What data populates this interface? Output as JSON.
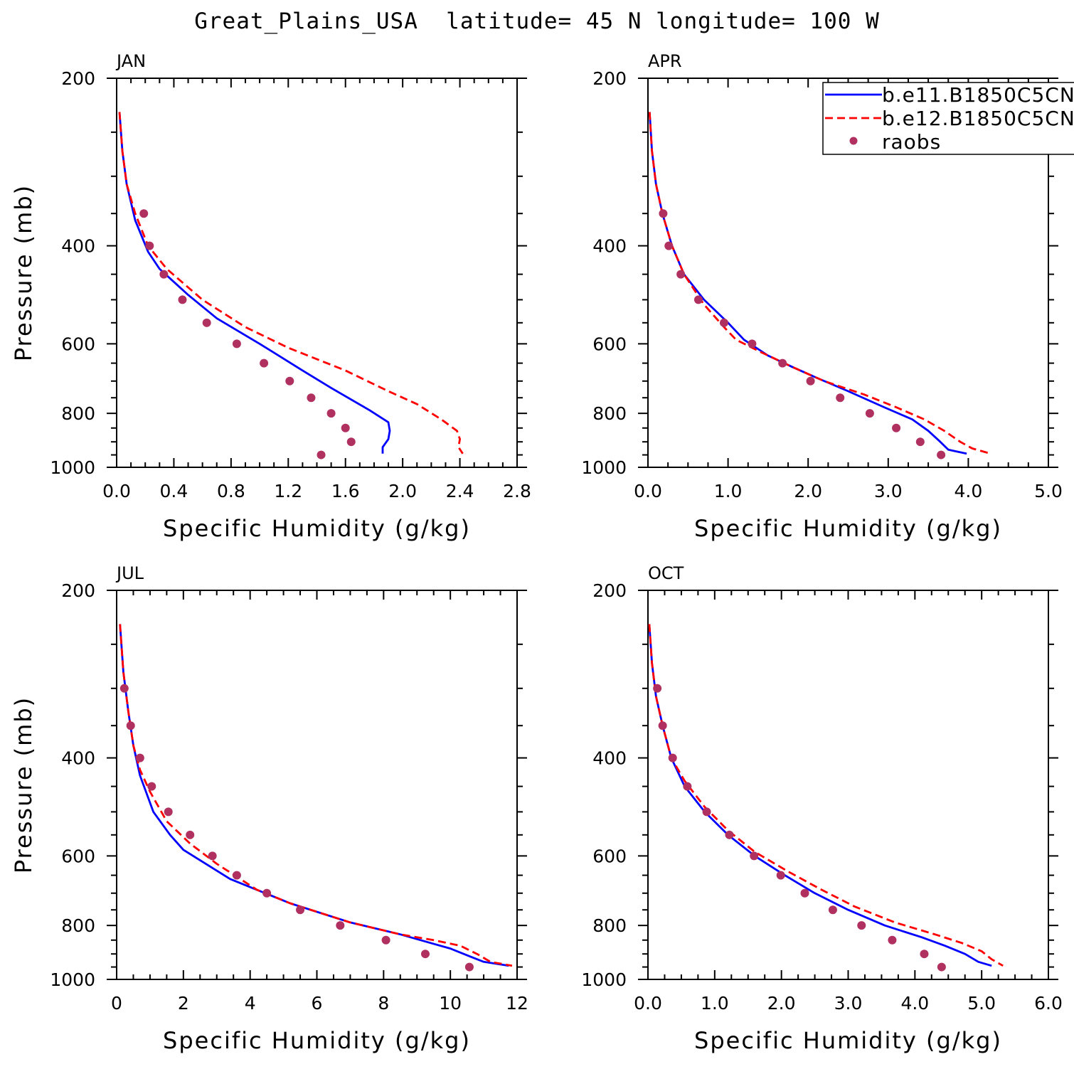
{
  "title": "Great_Plains_USA  latitude= 45 N longitude= 100 W",
  "legend": {
    "entries": [
      {
        "label": "b.e11.B1850C5CN",
        "style": "solid",
        "color": "#0000ff"
      },
      {
        "label": "b.e12.B1850C5CN",
        "style": "dashed",
        "color": "#ff0000"
      },
      {
        "label": "raobs",
        "style": "marker",
        "color": "#b03060"
      }
    ]
  },
  "colors": {
    "model1": "#0000ff",
    "model2": "#ff0000",
    "raobs": "#b03060"
  },
  "chart_data": [
    {
      "type": "line",
      "panel_label": "JAN",
      "xlabel": "Specific Humidity (g/kg)",
      "ylabel": "Pressure (mb)",
      "xlim": [
        0,
        2.8
      ],
      "ylim": [
        200,
        1000
      ],
      "y_reversed": true,
      "xticks": [
        0,
        0.4,
        0.8,
        1.2,
        1.6,
        2.0,
        2.4,
        2.8
      ],
      "xtick_labels": [
        "0.0",
        "0.4",
        "0.8",
        "1.2",
        "1.6",
        "2.0",
        "2.4",
        "2.8"
      ],
      "yticks": [
        200,
        400,
        600,
        800,
        1000
      ],
      "series": [
        {
          "name": "b.e11.B1850C5CN",
          "points": [
            [
              0.02,
              230
            ],
            [
              0.04,
              270
            ],
            [
              0.07,
              310
            ],
            [
              0.13,
              360
            ],
            [
              0.22,
              410
            ],
            [
              0.3,
              440
            ],
            [
              0.5,
              490
            ],
            [
              0.7,
              540
            ],
            [
              1.0,
              600
            ],
            [
              1.3,
              670
            ],
            [
              1.5,
              720
            ],
            [
              1.77,
              790
            ],
            [
              1.9,
              830
            ],
            [
              1.91,
              860
            ],
            [
              1.9,
              890
            ],
            [
              1.86,
              920
            ],
            [
              1.86,
              945
            ]
          ]
        },
        {
          "name": "b.e12.B1850C5CN",
          "points": [
            [
              0.02,
              230
            ],
            [
              0.04,
              270
            ],
            [
              0.07,
              310
            ],
            [
              0.13,
              350
            ],
            [
              0.22,
              400
            ],
            [
              0.35,
              440
            ],
            [
              0.6,
              500
            ],
            [
              0.9,
              560
            ],
            [
              1.2,
              610
            ],
            [
              1.6,
              670
            ],
            [
              1.9,
              730
            ],
            [
              2.1,
              770
            ],
            [
              2.27,
              820
            ],
            [
              2.38,
              860
            ],
            [
              2.4,
              890
            ],
            [
              2.39,
              920
            ],
            [
              2.42,
              945
            ]
          ]
        },
        {
          "name": "raobs",
          "points": [
            [
              0.19,
              350
            ],
            [
              0.23,
              400
            ],
            [
              0.33,
              450
            ],
            [
              0.46,
              500
            ],
            [
              0.63,
              550
            ],
            [
              0.84,
              600
            ],
            [
              1.03,
              650
            ],
            [
              1.21,
              700
            ],
            [
              1.36,
              750
            ],
            [
              1.5,
              800
            ],
            [
              1.6,
              850
            ],
            [
              1.64,
              900
            ],
            [
              1.43,
              950
            ]
          ]
        }
      ]
    },
    {
      "type": "line",
      "panel_label": "APR",
      "xlabel": "Specific Humidity (g/kg)",
      "ylabel": "",
      "xlim": [
        0,
        5
      ],
      "ylim": [
        200,
        1000
      ],
      "y_reversed": true,
      "xticks": [
        0,
        1,
        2,
        3,
        4,
        5
      ],
      "xtick_labels": [
        "0.0",
        "1.0",
        "2.0",
        "3.0",
        "4.0",
        "5.0"
      ],
      "yticks": [
        200,
        400,
        600,
        800,
        1000
      ],
      "series": [
        {
          "name": "b.e11.B1850C5CN",
          "points": [
            [
              0.02,
              230
            ],
            [
              0.05,
              270
            ],
            [
              0.1,
              310
            ],
            [
              0.18,
              350
            ],
            [
              0.3,
              400
            ],
            [
              0.45,
              450
            ],
            [
              0.7,
              500
            ],
            [
              1.0,
              550
            ],
            [
              1.2,
              590
            ],
            [
              1.5,
              630
            ],
            [
              1.8,
              660
            ],
            [
              2.1,
              690
            ],
            [
              2.5,
              730
            ],
            [
              2.95,
              780
            ],
            [
              3.3,
              820
            ],
            [
              3.5,
              860
            ],
            [
              3.65,
              900
            ],
            [
              3.75,
              930
            ],
            [
              3.98,
              945
            ]
          ]
        },
        {
          "name": "b.e12.B1850C5CN",
          "points": [
            [
              0.02,
              230
            ],
            [
              0.05,
              270
            ],
            [
              0.1,
              310
            ],
            [
              0.18,
              350
            ],
            [
              0.3,
              400
            ],
            [
              0.45,
              450
            ],
            [
              0.7,
              510
            ],
            [
              0.95,
              560
            ],
            [
              1.1,
              590
            ],
            [
              1.4,
              620
            ],
            [
              1.8,
              660
            ],
            [
              2.2,
              700
            ],
            [
              2.7,
              740
            ],
            [
              3.1,
              780
            ],
            [
              3.45,
              820
            ],
            [
              3.7,
              860
            ],
            [
              3.9,
              900
            ],
            [
              4.05,
              925
            ],
            [
              4.28,
              945
            ]
          ]
        },
        {
          "name": "raobs",
          "points": [
            [
              0.19,
              350
            ],
            [
              0.26,
              400
            ],
            [
              0.41,
              450
            ],
            [
              0.63,
              500
            ],
            [
              0.95,
              550
            ],
            [
              1.3,
              600
            ],
            [
              1.68,
              650
            ],
            [
              2.03,
              700
            ],
            [
              2.4,
              750
            ],
            [
              2.77,
              800
            ],
            [
              3.1,
              850
            ],
            [
              3.4,
              900
            ],
            [
              3.66,
              950
            ]
          ]
        }
      ]
    },
    {
      "type": "line",
      "panel_label": "JUL",
      "xlabel": "Specific Humidity (g/kg)",
      "ylabel": "Pressure (mb)",
      "xlim": [
        0,
        12
      ],
      "ylim": [
        200,
        1000
      ],
      "y_reversed": true,
      "xticks": [
        0,
        2,
        4,
        6,
        8,
        10,
        12
      ],
      "xtick_labels": [
        "0",
        "2",
        "4",
        "6",
        "8",
        "10",
        "12"
      ],
      "yticks": [
        200,
        400,
        600,
        800,
        1000
      ],
      "series": [
        {
          "name": "b.e11.B1850C5CN",
          "points": [
            [
              0.1,
              230
            ],
            [
              0.2,
              280
            ],
            [
              0.35,
              330
            ],
            [
              0.5,
              380
            ],
            [
              0.7,
              430
            ],
            [
              1.1,
              500
            ],
            [
              1.6,
              550
            ],
            [
              2.0,
              585
            ],
            [
              3.4,
              660
            ],
            [
              5.2,
              730
            ],
            [
              7.0,
              790
            ],
            [
              8.5,
              830
            ],
            [
              9.4,
              860
            ],
            [
              10.0,
              880
            ],
            [
              10.6,
              910
            ],
            [
              11.0,
              930
            ],
            [
              11.75,
              945
            ]
          ]
        },
        {
          "name": "b.e12.B1850C5CN",
          "points": [
            [
              0.1,
              230
            ],
            [
              0.2,
              280
            ],
            [
              0.35,
              330
            ],
            [
              0.5,
              380
            ],
            [
              0.7,
              420
            ],
            [
              1.0,
              460
            ],
            [
              1.5,
              520
            ],
            [
              2.2,
              570
            ],
            [
              3.0,
              620
            ],
            [
              4.2,
              690
            ],
            [
              5.2,
              730
            ],
            [
              7.0,
              790
            ],
            [
              8.5,
              830
            ],
            [
              9.5,
              850
            ],
            [
              10.3,
              870
            ],
            [
              10.8,
              900
            ],
            [
              11.2,
              930
            ],
            [
              11.85,
              945
            ]
          ]
        },
        {
          "name": "raobs",
          "points": [
            [
              0.23,
              300
            ],
            [
              0.42,
              350
            ],
            [
              0.7,
              400
            ],
            [
              1.05,
              450
            ],
            [
              1.55,
              500
            ],
            [
              2.2,
              550
            ],
            [
              2.87,
              600
            ],
            [
              3.6,
              650
            ],
            [
              4.5,
              700
            ],
            [
              5.5,
              750
            ],
            [
              6.7,
              800
            ],
            [
              8.07,
              850
            ],
            [
              9.25,
              900
            ],
            [
              10.57,
              950
            ]
          ]
        }
      ]
    },
    {
      "type": "line",
      "panel_label": "OCT",
      "xlabel": "Specific Humidity (g/kg)",
      "ylabel": "",
      "xlim": [
        0,
        6
      ],
      "ylim": [
        200,
        1000
      ],
      "y_reversed": true,
      "xticks": [
        0,
        1,
        2,
        3,
        4,
        5,
        6
      ],
      "xtick_labels": [
        "0.0",
        "1.0",
        "2.0",
        "3.0",
        "4.0",
        "5.0",
        "6.0"
      ],
      "yticks": [
        200,
        400,
        600,
        800,
        1000
      ],
      "series": [
        {
          "name": "b.e11.B1850C5CN",
          "points": [
            [
              0.02,
              230
            ],
            [
              0.06,
              270
            ],
            [
              0.12,
              310
            ],
            [
              0.22,
              350
            ],
            [
              0.35,
              400
            ],
            [
              0.55,
              450
            ],
            [
              0.85,
              500
            ],
            [
              1.2,
              550
            ],
            [
              1.6,
              600
            ],
            [
              2.05,
              650
            ],
            [
              2.5,
              700
            ],
            [
              3.0,
              750
            ],
            [
              3.55,
              800
            ],
            [
              4.1,
              840
            ],
            [
              4.45,
              870
            ],
            [
              4.75,
              900
            ],
            [
              4.95,
              930
            ],
            [
              5.15,
              945
            ]
          ]
        },
        {
          "name": "b.e12.B1850C5CN",
          "points": [
            [
              0.02,
              230
            ],
            [
              0.06,
              270
            ],
            [
              0.12,
              310
            ],
            [
              0.22,
              350
            ],
            [
              0.35,
              400
            ],
            [
              0.55,
              440
            ],
            [
              0.85,
              490
            ],
            [
              1.2,
              540
            ],
            [
              1.6,
              590
            ],
            [
              2.1,
              640
            ],
            [
              2.6,
              690
            ],
            [
              3.1,
              740
            ],
            [
              3.7,
              790
            ],
            [
              4.3,
              830
            ],
            [
              4.7,
              860
            ],
            [
              5.0,
              890
            ],
            [
              5.15,
              920
            ],
            [
              5.32,
              945
            ]
          ]
        },
        {
          "name": "raobs",
          "points": [
            [
              0.14,
              300
            ],
            [
              0.22,
              350
            ],
            [
              0.37,
              400
            ],
            [
              0.59,
              450
            ],
            [
              0.88,
              500
            ],
            [
              1.22,
              550
            ],
            [
              1.59,
              600
            ],
            [
              1.99,
              650
            ],
            [
              2.35,
              700
            ],
            [
              2.77,
              750
            ],
            [
              3.2,
              800
            ],
            [
              3.66,
              850
            ],
            [
              4.14,
              900
            ],
            [
              4.4,
              950
            ]
          ]
        }
      ]
    }
  ]
}
